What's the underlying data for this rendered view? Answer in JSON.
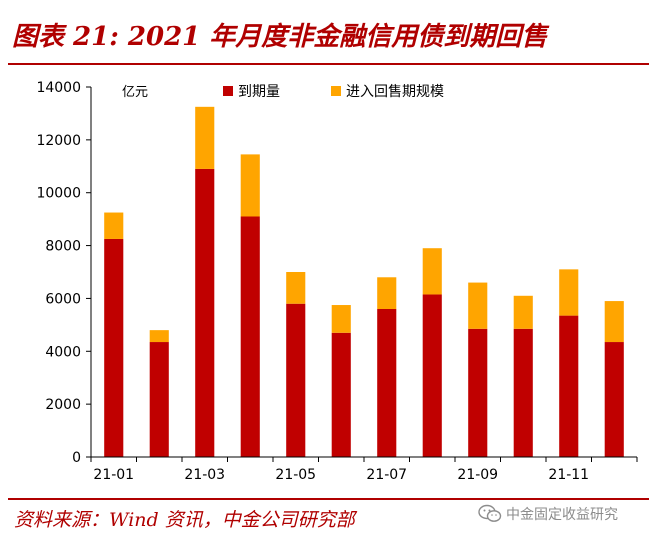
{
  "title": "图表 21: 2021 年月度非金融信用债到期回售",
  "source": "资料来源：Wind 资讯，中金公司研究部",
  "watermark": "中金固定收益研究",
  "icons": {
    "watermark": "wechat-icon"
  },
  "colors": {
    "brand": "#b00000",
    "maturity": "#c00000",
    "putback": "#ffa500"
  },
  "chart_data": {
    "type": "bar",
    "stacked": true,
    "unit": "亿元",
    "categories": [
      "21-01",
      "21-02",
      "21-03",
      "21-04",
      "21-05",
      "21-06",
      "21-07",
      "21-08",
      "21-09",
      "21-10",
      "21-11",
      "21-12"
    ],
    "tick_labels": [
      "21-01",
      "",
      "21-03",
      "",
      "21-05",
      "",
      "21-07",
      "",
      "21-09",
      "",
      "21-11",
      ""
    ],
    "series": [
      {
        "name": "到期量",
        "values": [
          8250,
          4350,
          10900,
          9100,
          5800,
          4700,
          5600,
          6150,
          4850,
          4850,
          5350,
          4350
        ]
      },
      {
        "name": "进入回售期规模",
        "values": [
          1000,
          450,
          2350,
          2350,
          1200,
          1050,
          1200,
          1750,
          1750,
          1250,
          1750,
          1550
        ]
      }
    ],
    "ylim": [
      0,
      14000
    ],
    "yticks": [
      0,
      2000,
      4000,
      6000,
      8000,
      10000,
      12000,
      14000
    ],
    "grid": false,
    "legend": "top"
  }
}
